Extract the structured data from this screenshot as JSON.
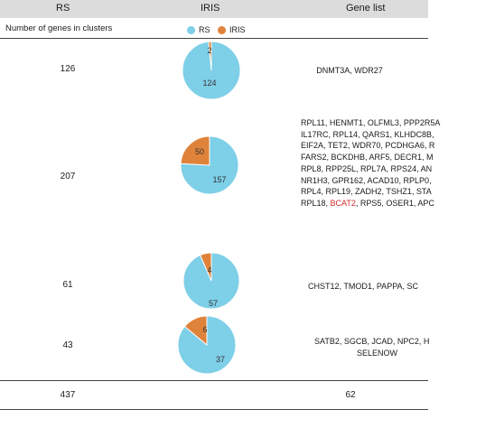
{
  "header": {
    "col_rs": "RS",
    "col_iris": "IRIS",
    "col_genes": "Gene list"
  },
  "subheader": {
    "label": "Number of genes in clusters"
  },
  "legend": [
    {
      "label": "RS",
      "color": "#7ecfe8"
    },
    {
      "label": "IRIS",
      "color": "#e0833a"
    }
  ],
  "colors": {
    "rs": "#7ecfe8",
    "iris": "#e0833a",
    "highlight": "#d42a2a"
  },
  "rows": [
    {
      "rs_count": "126",
      "genes": [
        "DNMT3A, WDR27"
      ]
    },
    {
      "rs_count": "207",
      "genes": [
        "RPL11, HENMT1, OLFML3, PPP2R5A",
        "IL17RC, RPL14, QARS1, KLHDC8B,",
        "EIF2A, TET2, WDR70, PCDHGA6, R",
        "FARS2, BCKDHB, ARF5, DECR1, M",
        "RPL8, RPP25L, RPL7A, RPS24, AN",
        "NR1H3, GPR162, ACAD10, RPLP0,",
        "RPL4, RPL19, ZADH2, TSHZ1, STA",
        "RPL18, |BCAT2|, RPS5, OSER1, APC"
      ]
    },
    {
      "rs_count": "61",
      "genes": [
        "CHST12, TMOD1, PAPPA, SC"
      ]
    },
    {
      "rs_count": "43",
      "genes": [
        "SATB2, SGCB, JCAD, NPC2, H",
        "SELENOW"
      ]
    }
  ],
  "total": {
    "rs": "437",
    "genes": "62"
  },
  "chart_data": {
    "type": "pie",
    "series_names": [
      "RS",
      "IRIS"
    ],
    "pies": [
      {
        "values": [
          124,
          2
        ],
        "labels": [
          "124",
          "2"
        ]
      },
      {
        "values": [
          157,
          50
        ],
        "labels": [
          "157",
          "50"
        ]
      },
      {
        "values": [
          57,
          4
        ],
        "labels": [
          "57",
          "4"
        ]
      },
      {
        "values": [
          37,
          6
        ],
        "labels": [
          "37",
          "6"
        ]
      }
    ]
  }
}
